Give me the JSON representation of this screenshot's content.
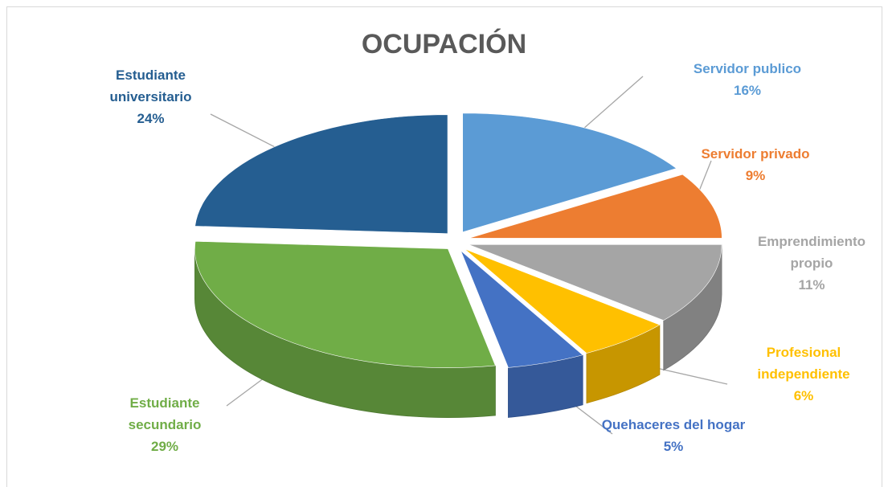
{
  "chart_data": {
    "type": "pie3d",
    "title": "OCUPACIÓN",
    "categories": [
      "Servidor publico",
      "Servidor privado",
      "Emprendimiento propio",
      "Profesional independiente",
      "Quehaceres del hogar",
      "Estudiante secundario",
      "Estudiante universitario"
    ],
    "values": [
      16,
      9,
      11,
      6,
      5,
      29,
      24
    ],
    "value_labels": [
      "16%",
      "9%",
      "11%",
      "6%",
      "5%",
      "29%",
      "24%"
    ],
    "colors": [
      "#5b9bd5",
      "#ed7d31",
      "#a5a5a5",
      "#ffc000",
      "#4472c4",
      "#70ad47",
      "#255e91"
    ]
  }
}
